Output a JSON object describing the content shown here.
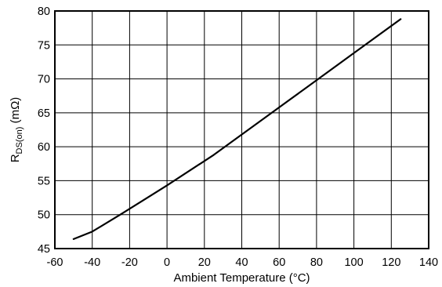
{
  "chart_data": {
    "type": "line",
    "title": "",
    "xlabel": "Ambient Temperature (°C)",
    "ylabel": {
      "main": "R",
      "subscript": "DS(on)",
      "unit": " (mΩ)"
    },
    "xlim": [
      -60,
      140
    ],
    "ylim": [
      45,
      80
    ],
    "xticks": [
      -60,
      -40,
      -20,
      0,
      20,
      40,
      60,
      80,
      100,
      120,
      140
    ],
    "yticks": [
      45,
      50,
      55,
      60,
      65,
      70,
      75,
      80
    ],
    "xtick_labels": [
      "-60",
      "-40",
      "-20",
      "0",
      "20",
      "40",
      "60",
      "80",
      "100",
      "120",
      "140"
    ],
    "ytick_labels": [
      "45",
      "50",
      "55",
      "60",
      "65",
      "70",
      "75",
      "80"
    ],
    "grid": true,
    "series": [
      {
        "x": [
          -50,
          -40,
          -25,
          0,
          25,
          50,
          75,
          100,
          125
        ],
        "values": [
          46.4,
          47.5,
          50.0,
          54.3,
          58.8,
          63.8,
          68.8,
          73.8,
          78.8
        ]
      }
    ]
  }
}
